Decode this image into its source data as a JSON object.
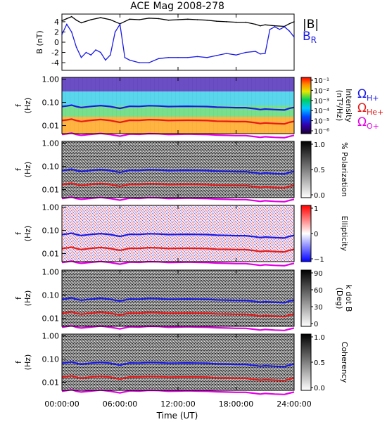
{
  "title": "ACE Mag 2008-278",
  "xaxis": {
    "label": "Time (UT)",
    "range": [
      0,
      24
    ],
    "ticks": [
      {
        "hour": 0,
        "label": "00:00:00"
      },
      {
        "hour": 6,
        "label": "06:00:00"
      },
      {
        "hour": 12,
        "label": "12:00:00"
      },
      {
        "hour": 18,
        "label": "18:00:00"
      },
      {
        "hour": 24,
        "label": "24:00:00"
      }
    ]
  },
  "colors": {
    "b_total": "#000000",
    "b_r": "#1a1ae6",
    "omega_h": "#1a1ae6",
    "omega_he": "#e61a1a",
    "omega_o": "#e600e6"
  },
  "chart_data": [
    {
      "type": "line",
      "title": "ACE Mag 2008-278",
      "ylabel": "B (nT)",
      "ylim": [
        -5.5,
        5.5
      ],
      "yticks": [
        4,
        2,
        0,
        -2,
        -4
      ],
      "legend": [
        "|B|",
        "B_R"
      ],
      "legend_labels": {
        "b_total": "|B|",
        "b_r_main": "B",
        "b_r_sub": "R"
      },
      "series": [
        {
          "name": "|B|",
          "color": "#000000",
          "x": [
            0,
            0.5,
            1,
            1.5,
            2,
            3,
            4,
            5,
            6,
            7,
            8,
            9,
            10,
            11,
            12,
            13,
            14,
            15,
            16,
            17,
            18,
            19,
            20,
            20.5,
            21,
            22,
            23,
            23.5,
            24
          ],
          "values": [
            4.2,
            4.6,
            5.0,
            4.3,
            3.8,
            4.4,
            4.8,
            4.4,
            3.6,
            4.5,
            4.4,
            4.7,
            4.6,
            4.3,
            4.4,
            4.5,
            4.4,
            4.3,
            4.1,
            4.0,
            3.9,
            3.9,
            3.5,
            3.2,
            3.4,
            3.2,
            3.1,
            3.6,
            4.0
          ]
        },
        {
          "name": "B_R",
          "color": "#1a1ae6",
          "x": [
            0,
            0.5,
            1,
            1.5,
            2,
            2.5,
            3,
            3.5,
            4,
            4.5,
            5,
            5.5,
            6,
            6.5,
            7,
            8,
            9,
            10,
            11,
            12,
            13,
            14,
            15,
            16,
            17,
            18,
            19,
            20,
            20.5,
            21,
            21.5,
            22,
            22.5,
            23,
            23.5,
            24
          ],
          "values": [
            1.5,
            3.5,
            2.0,
            -1.0,
            -3.0,
            -2.0,
            -2.5,
            -1.5,
            -2.0,
            -3.5,
            -2.5,
            2.0,
            3.5,
            -3.0,
            -3.5,
            -4.0,
            -4.0,
            -3.2,
            -3.0,
            -3.0,
            -3.0,
            -2.8,
            -3.0,
            -2.6,
            -2.2,
            -2.5,
            -2.0,
            -1.8,
            -2.3,
            -2.2,
            2.5,
            3.0,
            2.5,
            3.0,
            2.2,
            1.0
          ]
        }
      ]
    },
    {
      "type": "heatmap",
      "ylabel": "f (Hz)",
      "yscale": "log",
      "ylim": [
        0.0045,
        1.2
      ],
      "yticks": [
        "1.00",
        "0.10",
        "0.01"
      ],
      "colorbar": {
        "label": "Intensity (nT²/Hz)",
        "scale": "log",
        "ticks": [
          "10⁻¹",
          "10⁻²",
          "10⁻³",
          "10⁻⁴",
          "10⁻⁵",
          "10⁻⁶"
        ],
        "colormap": "rainbow"
      },
      "curve_legend": {
        "h": {
          "main": "Ω",
          "sub": "H+"
        },
        "he": {
          "main": "Ω",
          "sub": "He+"
        },
        "o": {
          "main": "Ω",
          "sub": "O+"
        }
      },
      "curves": [
        "omega_h",
        "omega_he",
        "omega_o"
      ]
    },
    {
      "type": "heatmap",
      "ylabel": "f (Hz)",
      "yscale": "log",
      "yticks": [
        "1.00",
        "0.10",
        "0.01"
      ],
      "colorbar": {
        "label": "% Polarization",
        "ticks": [
          "1.0",
          "0.5",
          "0.0"
        ],
        "colormap": "gray"
      },
      "curves": [
        "omega_h",
        "omega_he",
        "omega_o"
      ]
    },
    {
      "type": "heatmap",
      "ylabel": "f (Hz)",
      "yscale": "log",
      "yticks": [
        "1.00",
        "0.10",
        "0.01"
      ],
      "colorbar": {
        "label": "Ellipticity",
        "ticks": [
          "1",
          "0",
          "−1"
        ],
        "colormap": "bwr"
      },
      "curves": [
        "omega_h",
        "omega_he",
        "omega_o"
      ]
    },
    {
      "type": "heatmap",
      "ylabel": "f (Hz)",
      "yscale": "log",
      "yticks": [
        "1.00",
        "0.10",
        "0.01"
      ],
      "colorbar": {
        "label": "k dot B (Deg)",
        "label_lines": [
          "k dot B",
          "(Deg)"
        ],
        "ticks": [
          "90",
          "60",
          "30",
          "0"
        ],
        "colormap": "gray"
      },
      "curves": [
        "omega_h",
        "omega_he",
        "omega_o"
      ]
    },
    {
      "type": "heatmap",
      "ylabel": "f (Hz)",
      "yscale": "log",
      "yticks": [
        "1.00",
        "0.10",
        "0.01"
      ],
      "colorbar": {
        "label": "Coherency",
        "ticks": [
          "1.0",
          "0.5",
          "0.0"
        ],
        "colormap": "gray"
      },
      "curves": [
        "omega_h",
        "omega_he",
        "omega_o"
      ]
    }
  ],
  "gyrofrequency_curves": {
    "x": [
      0,
      0.5,
      1,
      1.5,
      2,
      3,
      4,
      5,
      6,
      7,
      8,
      9,
      10,
      11,
      12,
      13,
      14,
      15,
      16,
      17,
      18,
      19,
      20,
      20.5,
      21,
      22,
      23,
      23.5,
      24
    ],
    "omega_h": [
      0.066,
      0.07,
      0.076,
      0.066,
      0.06,
      0.067,
      0.073,
      0.066,
      0.055,
      0.068,
      0.067,
      0.072,
      0.07,
      0.066,
      0.067,
      0.068,
      0.067,
      0.066,
      0.062,
      0.061,
      0.059,
      0.059,
      0.053,
      0.049,
      0.052,
      0.049,
      0.047,
      0.055,
      0.061
    ],
    "omega_he": [
      0.0165,
      0.0175,
      0.019,
      0.0165,
      0.015,
      0.0168,
      0.0183,
      0.0165,
      0.0138,
      0.017,
      0.0168,
      0.018,
      0.0175,
      0.0165,
      0.0168,
      0.017,
      0.0168,
      0.0165,
      0.0155,
      0.0153,
      0.0148,
      0.0148,
      0.0133,
      0.0123,
      0.013,
      0.0123,
      0.0118,
      0.0138,
      0.0153
    ],
    "omega_o": [
      0.0041,
      0.0044,
      0.0048,
      0.0041,
      0.0038,
      0.0042,
      0.0046,
      0.0041,
      0.0035,
      0.0043,
      0.0042,
      0.0045,
      0.0044,
      0.0041,
      0.0042,
      0.0043,
      0.0042,
      0.0041,
      0.0039,
      0.0038,
      0.0037,
      0.0037,
      0.0033,
      0.0031,
      0.0033,
      0.0031,
      0.003,
      0.0034,
      0.0038
    ]
  }
}
